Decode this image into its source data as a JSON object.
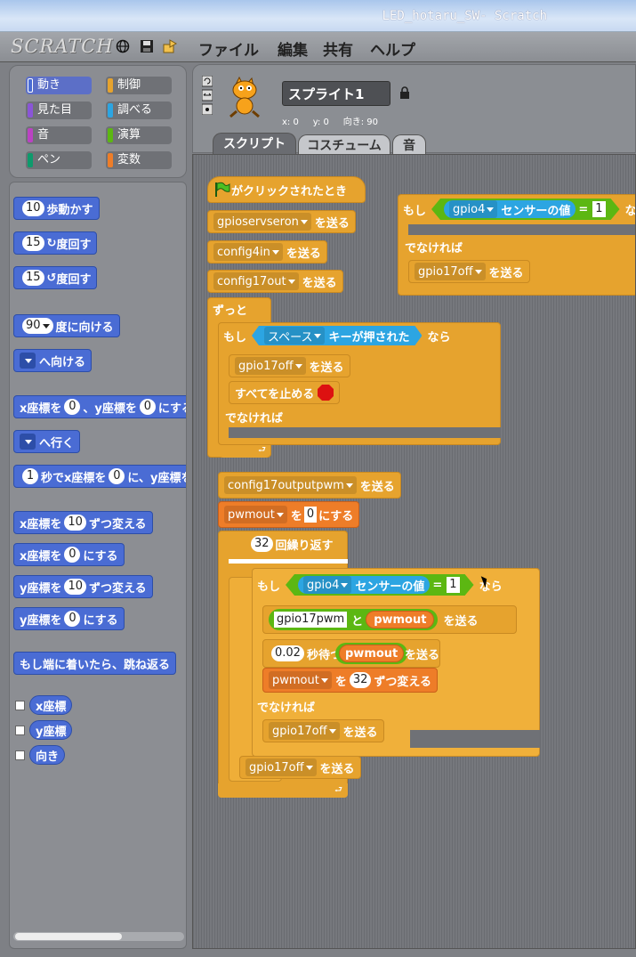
{
  "window": {
    "title": "LED_hotaru_SW- Scratch"
  },
  "menubar": {
    "logo": "SCRATCH",
    "items": [
      "ファイル",
      "編集",
      "共有",
      "ヘルプ"
    ],
    "icons": [
      "globe-icon",
      "save-icon",
      "share-icon"
    ]
  },
  "categories": [
    {
      "label": "動き",
      "color": "#4a6cd4",
      "selected": true
    },
    {
      "label": "制御",
      "color": "#e6a32e"
    },
    {
      "label": "見た目",
      "color": "#8a55d7"
    },
    {
      "label": "調べる",
      "color": "#2ca5e2"
    },
    {
      "label": "音",
      "color": "#bb42c3"
    },
    {
      "label": "演算",
      "color": "#5cb712"
    },
    {
      "label": "ペン",
      "color": "#0e9a6c"
    },
    {
      "label": "変数",
      "color": "#ee7d28"
    }
  ],
  "palette": {
    "move": {
      "value": "10",
      "text": "歩動かす"
    },
    "turn_right": {
      "value": "15",
      "text": "度回す"
    },
    "turn_left": {
      "value": "15",
      "text": "度回す"
    },
    "point_dir": {
      "value": "90",
      "text": "度に向ける"
    },
    "point_towards": {
      "text": "へ向ける"
    },
    "goto_xy": {
      "a": "x座標を",
      "x": "0",
      "b": "、y座標を",
      "y": "0",
      "c": "にする"
    },
    "goto": {
      "text": "へ行く"
    },
    "glide": {
      "t": "1",
      "a": "秒でx座標を",
      "x": "0",
      "b": "に、y座標を"
    },
    "change_x": {
      "a": "x座標を",
      "v": "10",
      "b": "ずつ変える"
    },
    "set_x": {
      "a": "x座標を",
      "v": "0",
      "b": "にする"
    },
    "change_y": {
      "a": "y座標を",
      "v": "10",
      "b": "ずつ変える"
    },
    "set_y": {
      "a": "y座標を",
      "v": "0",
      "b": "にする"
    },
    "bounce": {
      "text": "もし端に着いたら、跳ね返る"
    },
    "reporters": [
      "x座標",
      "y座標",
      "向き"
    ]
  },
  "sprite": {
    "name": "スプライト1",
    "x_label": "x: 0",
    "y_label": "y: 0",
    "dir_label": "向き: 90"
  },
  "tabs": [
    "スクリプト",
    "コスチューム",
    "音"
  ],
  "script": {
    "hat": "がクリックされたとき",
    "send": "を送る",
    "s1": "gpioservseron",
    "s2": "config4in",
    "s3": "config17out",
    "forever": "ずっと",
    "if": "もし",
    "then": "なら",
    "key": "スペース",
    "key_pressed": "キーが押された",
    "gpio17off": "gpio17off",
    "stop_all": "すべてを止める",
    "else": "でなければ",
    "s4": "config17outputpwm",
    "var_pwmout": "pwmout",
    "set_to": "を",
    "set_val": "0",
    "set_end": "にする",
    "repeat_n": "32",
    "repeat": "回繰り返す",
    "gpio4": "gpio4",
    "sensor_value": "センサーの値",
    "eq": "=",
    "one": "1",
    "gpio17pwm": "gpio17pwm",
    "join": "と",
    "wait_v": "0.02",
    "wait": "秒待つ",
    "change_by": "を",
    "change_v": "32",
    "change_end": "ずつ変える"
  }
}
